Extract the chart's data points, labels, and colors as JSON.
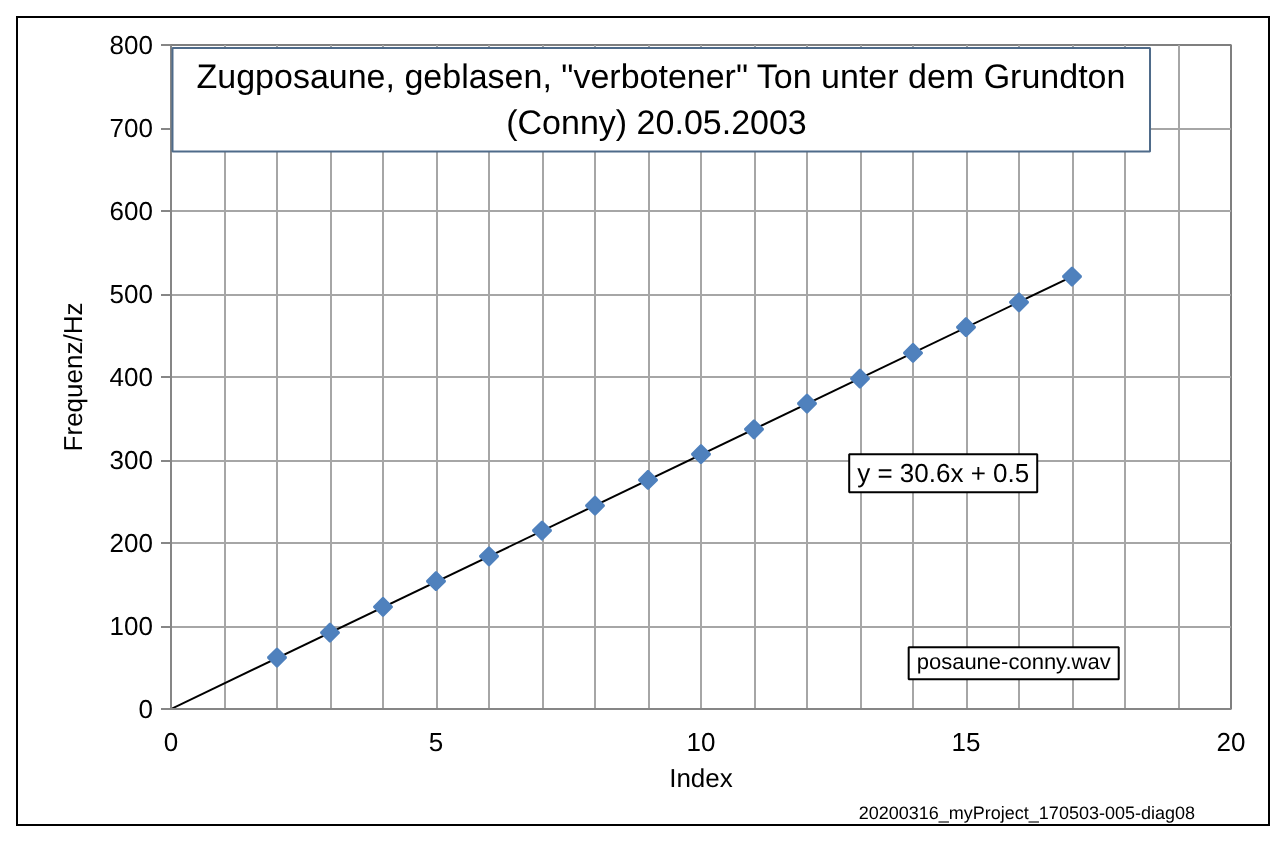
{
  "chart_data": {
    "type": "scatter",
    "title": "Zugposaune, geblasen, \"verbotener\" Ton unter dem Grundton\n(Conny)  20.05.2003",
    "xlabel": "Index",
    "ylabel": "Frequenz/Hz",
    "annotations": [
      "y = 30.6x + 0.5",
      "posaune-conny.wav",
      "20200316_myProject_170503-005-diag08"
    ],
    "marker": "diamond",
    "series": [
      {
        "color": "#4f81bd",
        "x": [
          2,
          3,
          4,
          5,
          6,
          7,
          8,
          9,
          10,
          11,
          12,
          13,
          14,
          15,
          16,
          17
        ],
        "values": [
          62,
          92,
          123,
          154,
          184,
          215,
          245,
          276,
          307,
          337,
          368,
          398,
          429,
          460,
          490,
          521
        ]
      },
      {
        "type": "line",
        "color": "#000000",
        "marker": "none",
        "line_style": "solid",
        "x": [
          0,
          17
        ],
        "values": [
          0,
          521
        ]
      }
    ],
    "xlim": [
      0,
      20
    ],
    "ylim": [
      0,
      800
    ],
    "xticks": [
      0,
      {
        "value": 1,
        "label": null
      },
      {
        "value": 2,
        "label": null
      },
      {
        "value": 3,
        "label": null
      },
      {
        "value": 4,
        "label": null
      },
      5,
      {
        "value": 6,
        "label": null
      },
      {
        "value": 7,
        "label": null
      },
      {
        "value": 8,
        "label": null
      },
      {
        "value": 9,
        "label": null
      },
      10,
      {
        "value": 11,
        "label": null
      },
      {
        "value": 12,
        "label": null
      },
      {
        "value": 13,
        "label": null
      },
      {
        "value": 14,
        "label": null
      },
      15,
      {
        "value": 16,
        "label": null
      },
      {
        "value": 17,
        "label": null
      },
      {
        "value": 18,
        "label": null
      },
      {
        "value": 19,
        "label": null
      },
      20
    ],
    "yticks": [
      0,
      100,
      200,
      300,
      400,
      500,
      600,
      700,
      800
    ],
    "grid": true
  }
}
